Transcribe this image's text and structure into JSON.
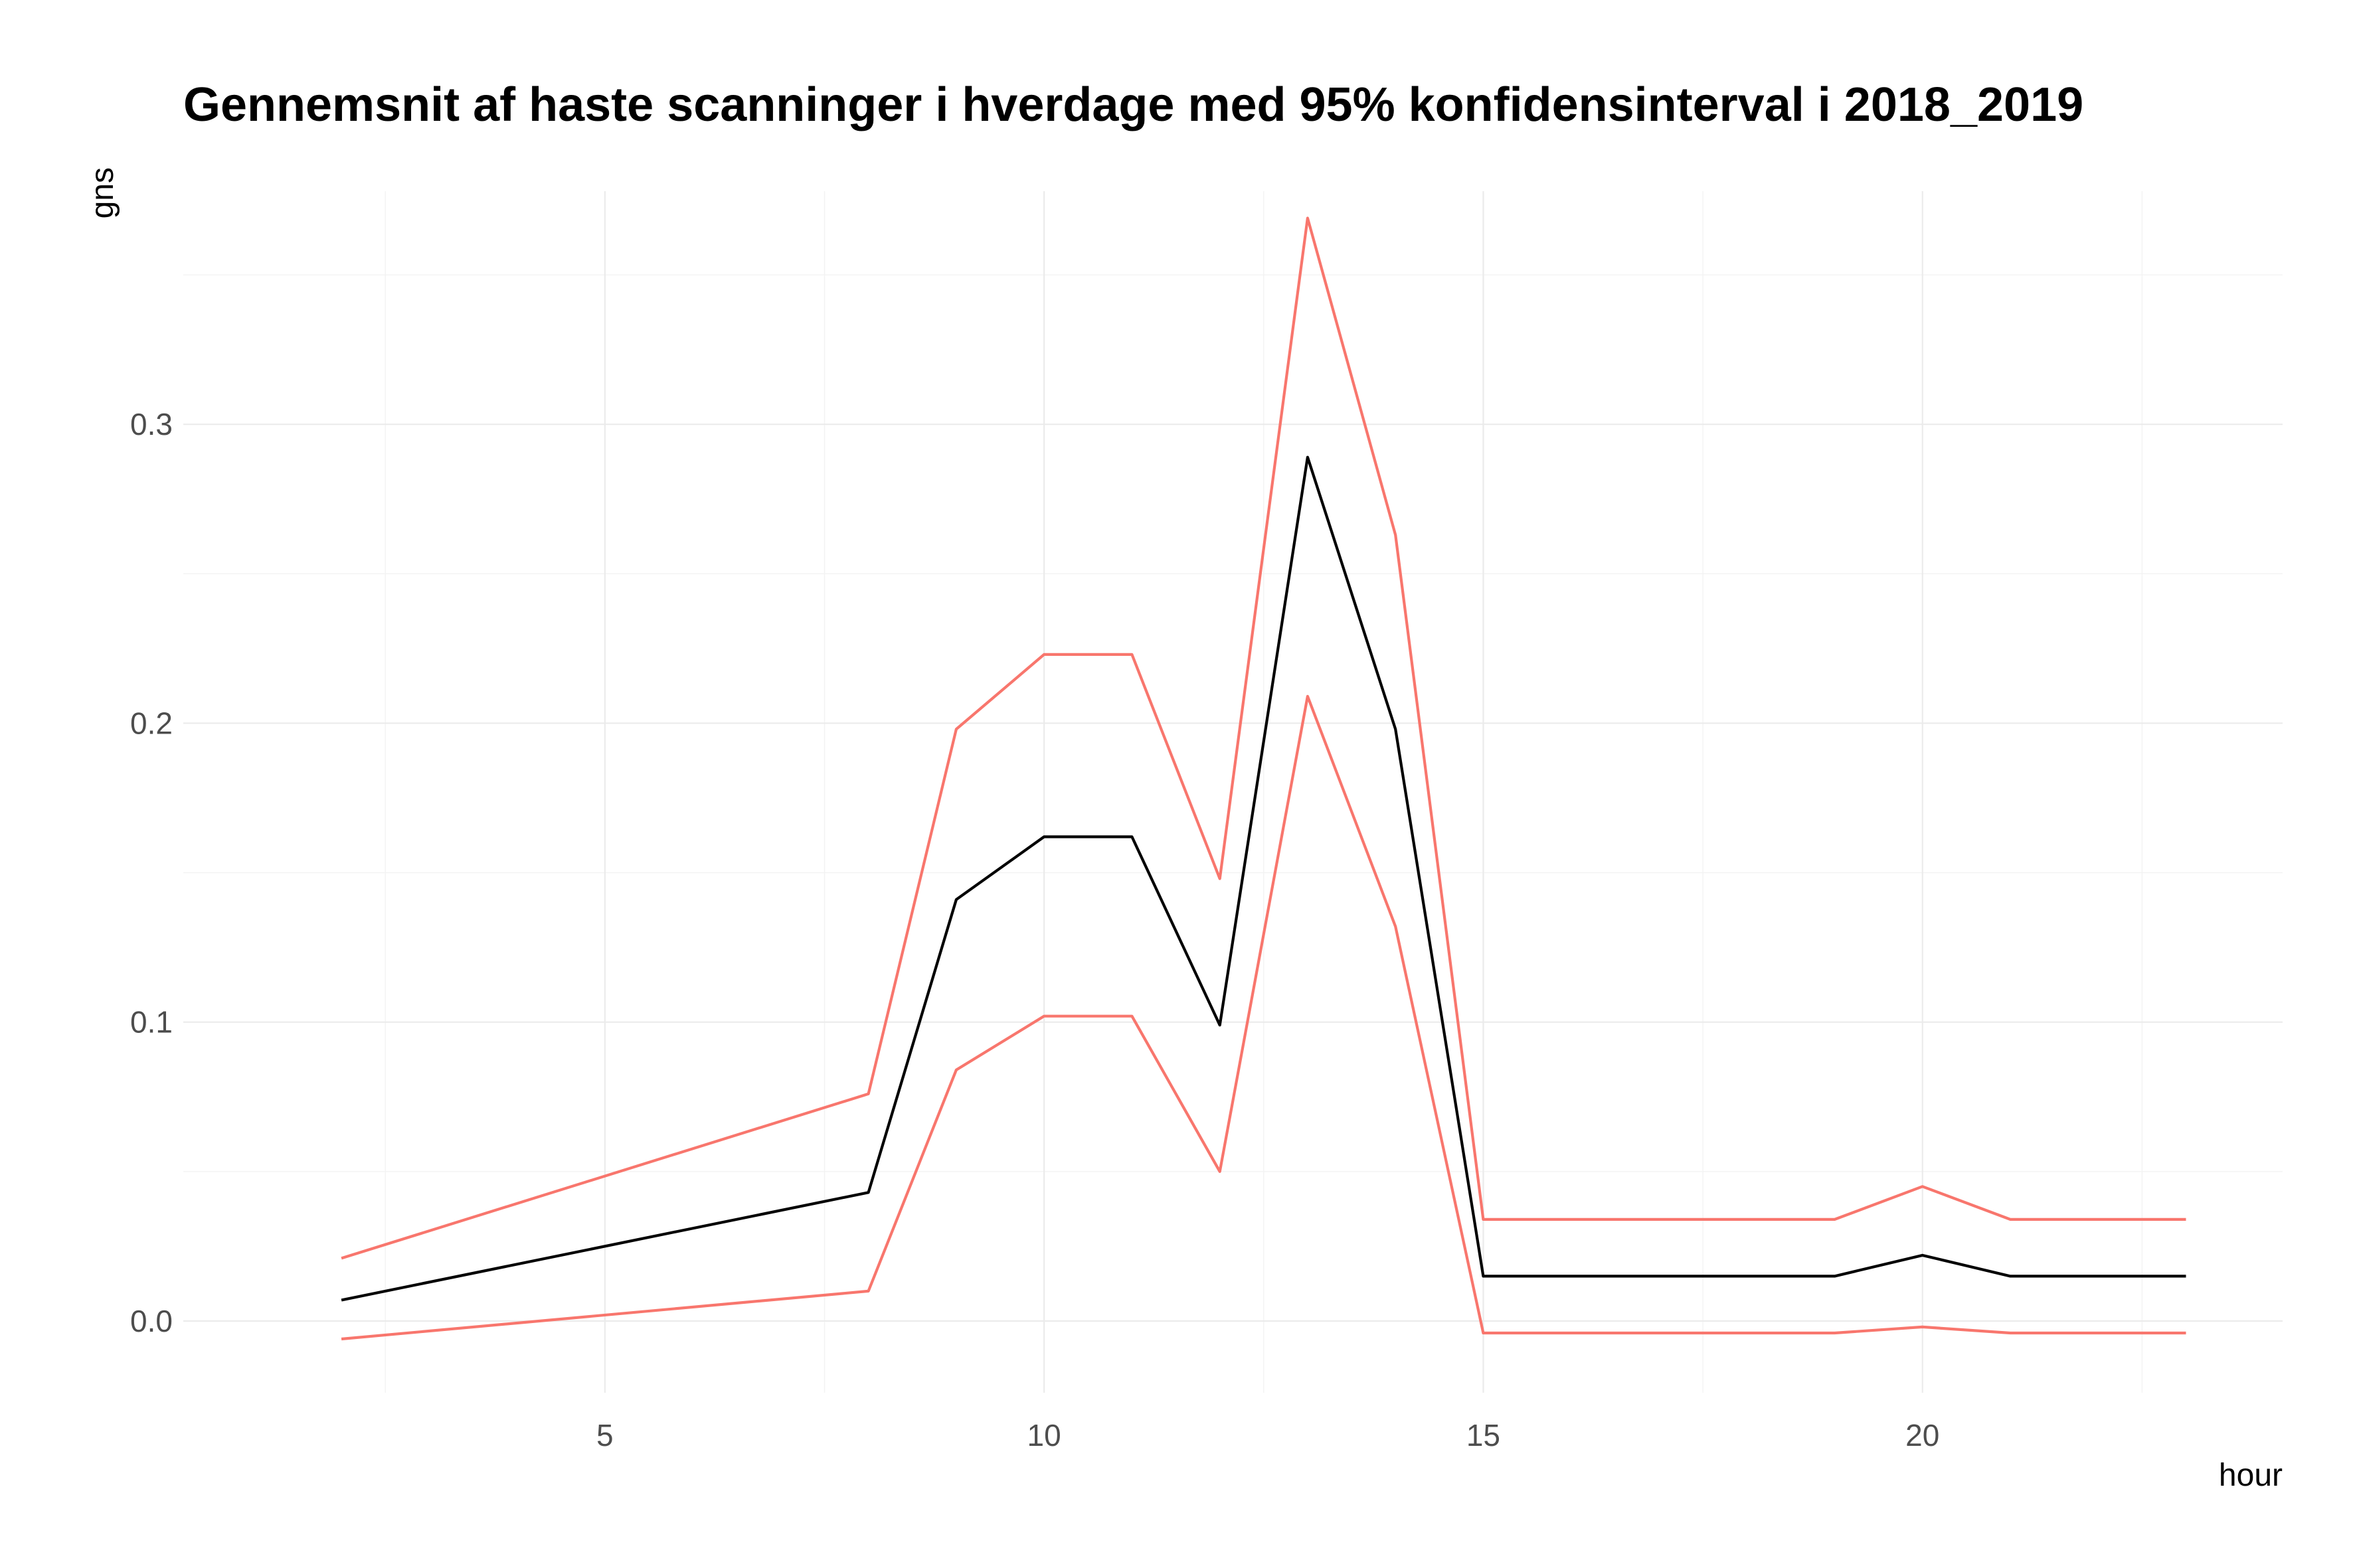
{
  "chart_data": {
    "type": "line",
    "title": "Gennemsnit af haste scanninger i hverdage med 95% konfidensinterval i 2018_2019",
    "xlabel": "hour",
    "ylabel": "gns",
    "x": [
      2,
      8,
      9,
      10,
      11,
      12,
      13,
      14,
      15,
      19,
      20,
      21,
      23
    ],
    "xlim": [
      0.2,
      24.1
    ],
    "ylim": [
      -0.024,
      0.378
    ],
    "x_ticks": [
      5,
      10,
      15,
      20
    ],
    "x_tick_labels": [
      "5",
      "10",
      "15",
      "20"
    ],
    "y_ticks": [
      0.0,
      0.1,
      0.2,
      0.3
    ],
    "y_tick_labels": [
      "0.0",
      "0.1",
      "0.2",
      "0.3"
    ],
    "grid": true,
    "legend": "none",
    "series": [
      {
        "role": "upper",
        "color": "#F8766D",
        "values": [
          0.021,
          0.076,
          0.198,
          0.223,
          0.223,
          0.148,
          0.369,
          0.263,
          0.034,
          0.034,
          0.045,
          0.034,
          0.034
        ]
      },
      {
        "role": "mean",
        "color": "#000000",
        "values": [
          0.007,
          0.043,
          0.141,
          0.162,
          0.162,
          0.099,
          0.289,
          0.198,
          0.015,
          0.015,
          0.022,
          0.015,
          0.015
        ]
      },
      {
        "role": "lower",
        "color": "#F8766D",
        "values": [
          -0.006,
          0.01,
          0.084,
          0.102,
          0.102,
          0.05,
          0.209,
          0.132,
          -0.004,
          -0.004,
          -0.002,
          -0.004,
          -0.004
        ]
      }
    ]
  }
}
